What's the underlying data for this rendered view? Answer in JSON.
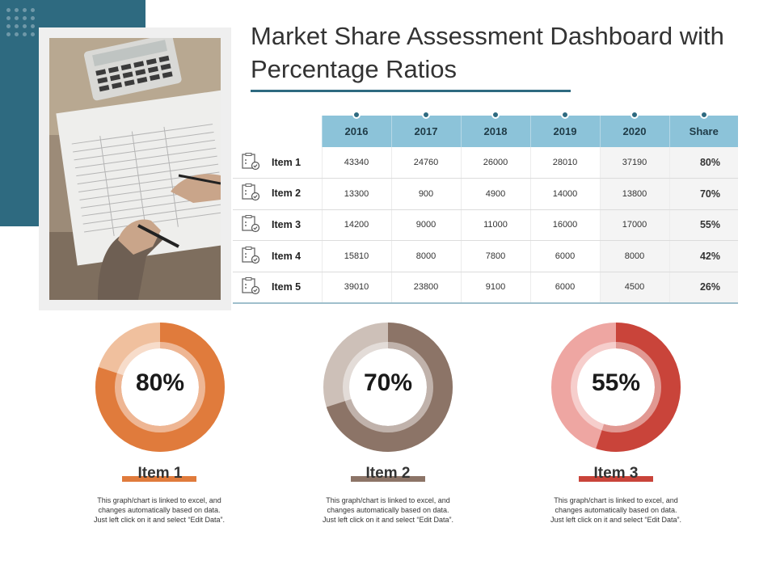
{
  "header": {
    "title": "Market Share Assessment Dashboard with Percentage Ratios"
  },
  "colors": {
    "accent": "#2e6a80",
    "table_header": "#8cc3d9",
    "item1": "#e07b3c",
    "item1_light": "#f0c09e",
    "item2": "#8c7467",
    "item2_light": "#cdc0b8",
    "item3": "#c9443a",
    "item3_light": "#eea6a2"
  },
  "table": {
    "columns": [
      "2016",
      "2017",
      "2018",
      "2019",
      "2020",
      "Share"
    ],
    "rows": [
      {
        "label": "Item 1",
        "values": [
          "43340",
          "24760",
          "26000",
          "28010",
          "37190"
        ],
        "share": "80%"
      },
      {
        "label": "Item 2",
        "values": [
          "13300",
          "900",
          "4900",
          "14000",
          "13800"
        ],
        "share": "70%"
      },
      {
        "label": "Item 3",
        "values": [
          "14200",
          "9000",
          "11000",
          "16000",
          "17000"
        ],
        "share": "55%"
      },
      {
        "label": "Item 4",
        "values": [
          "15810",
          "8000",
          "7800",
          "6000",
          "8000"
        ],
        "share": "42%"
      },
      {
        "label": "Item 5",
        "values": [
          "39010",
          "23800",
          "9100",
          "6000",
          "4500"
        ],
        "share": "26%"
      }
    ]
  },
  "chart_data": [
    {
      "type": "pie",
      "title": "Item 1",
      "values": [
        80,
        20
      ],
      "label": "80%",
      "description": "This graph/chart is linked to excel, and changes automatically based on data. Just left click on it and select “Edit Data”."
    },
    {
      "type": "pie",
      "title": "Item 2",
      "values": [
        70,
        30
      ],
      "label": "70%",
      "description": "This graph/chart is linked to excel, and changes automatically based on data. Just left click on it and select “Edit Data”."
    },
    {
      "type": "pie",
      "title": "Item 3",
      "values": [
        55,
        45
      ],
      "label": "55%",
      "description": "This graph/chart is linked to excel, and changes automatically based on data. Just left click on it and select “Edit Data”."
    }
  ]
}
